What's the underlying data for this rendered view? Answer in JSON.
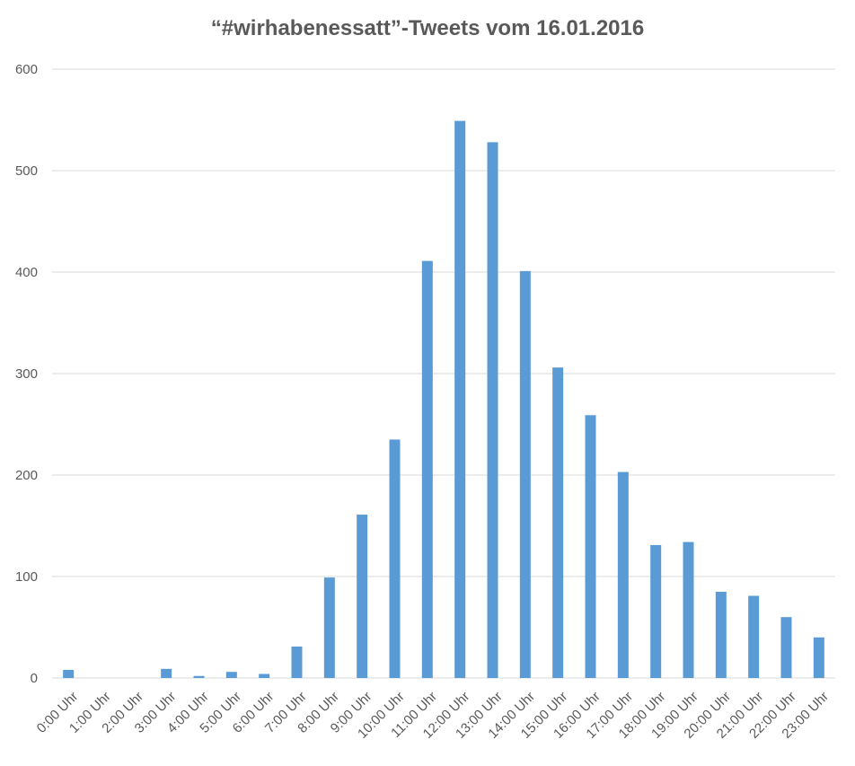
{
  "chart_data": {
    "type": "bar",
    "title": "“#wirhabenessatt”-Tweets vom 16.01.2016",
    "xlabel": "",
    "ylabel": "",
    "categories": [
      "0:00 Uhr",
      "1:00 Uhr",
      "2:00 Uhr",
      "3:00 Uhr",
      "4:00 Uhr",
      "5:00 Uhr",
      "6:00 Uhr",
      "7:00 Uhr",
      "8:00 Uhr",
      "9:00 Uhr",
      "10:00 Uhr",
      "11:00 Uhr",
      "12:00 Uhr",
      "13:00 Uhr",
      "14:00 Uhr",
      "15:00 Uhr",
      "16:00 Uhr",
      "17:00 Uhr",
      "18:00 Uhr",
      "19:00 Uhr",
      "20:00 Uhr",
      "21:00 Uhr",
      "22:00 Uhr",
      "23:00 Uhr"
    ],
    "series": [
      {
        "values": [
          8,
          0,
          0,
          9,
          2,
          6,
          4,
          31,
          99,
          161,
          235,
          411,
          549,
          528,
          401,
          306,
          259,
          203,
          131,
          134,
          85,
          81,
          60,
          40
        ]
      }
    ],
    "ylim": [
      0,
      600
    ],
    "yticks": [
      0,
      100,
      200,
      300,
      400,
      500,
      600
    ],
    "grid": true,
    "bar_color": "#5B9BD5",
    "grid_color": "#D9D9D9",
    "text_color": "#595959"
  }
}
